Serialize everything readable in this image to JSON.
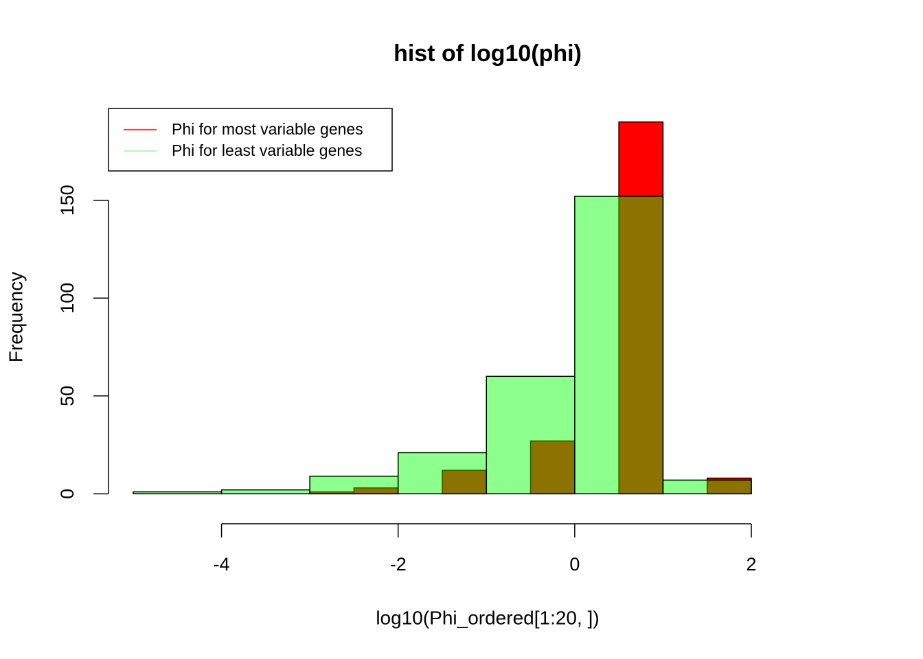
{
  "chart_data": {
    "type": "histogram",
    "title": "hist of log10(phi)",
    "x_label": "log10(Phi_ordered[1:20, ])",
    "y_label": "Frequency",
    "series": [
      {
        "name": "Phi for most variable genes",
        "color": "#ff0000",
        "bins": [
          -3,
          -2.5,
          -2,
          -1.5,
          -1,
          -0.5,
          0,
          0.5,
          1,
          1.5,
          2
        ],
        "values": [
          1,
          3,
          0,
          12,
          0,
          27,
          0,
          190,
          0,
          8
        ]
      },
      {
        "name": "Phi for least variable genes",
        "color": "#00ff0073",
        "bins": [
          -5,
          -4,
          -3,
          -2,
          -1,
          0,
          1,
          2
        ],
        "values": [
          1,
          2,
          9,
          21,
          60,
          152,
          7
        ]
      }
    ],
    "xlim": [
      -5.28,
      2.28
    ],
    "ylim": [
      -7.6,
      197.6
    ],
    "xticks": [
      -4,
      -2,
      0,
      2
    ],
    "yticks": [
      0,
      50,
      100,
      150
    ],
    "legend": "topleft"
  }
}
